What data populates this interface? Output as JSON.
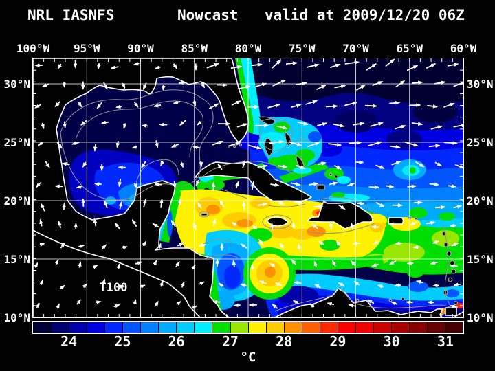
{
  "title": {
    "model": "NRL IASNFS",
    "run_type": "Nowcast",
    "valid": "valid at 2009/12/20 06Z"
  },
  "map": {
    "depth_label": "T100",
    "lon_labels": [
      "100°W",
      "95°W",
      "90°W",
      "85°W",
      "80°W",
      "75°W",
      "70°W",
      "65°W",
      "60°W"
    ],
    "lat_labels": [
      "30°N",
      "25°N",
      "20°N",
      "15°N",
      "10°N"
    ]
  },
  "colorbar": {
    "unit": "°C",
    "tick_labels": [
      "24",
      "25",
      "26",
      "27",
      "28",
      "29",
      "30",
      "31"
    ],
    "cell_colors": [
      "#000038",
      "#000070",
      "#0000a8",
      "#0000e0",
      "#0028ff",
      "#0055ff",
      "#0080ff",
      "#00aaff",
      "#00ccff",
      "#00eeff",
      "#00dd00",
      "#99e600",
      "#fff200",
      "#ffcc00",
      "#ff9100",
      "#ff6000",
      "#ff2a00",
      "#ff0000",
      "#ee0000",
      "#cc0000",
      "#a80000",
      "#880000",
      "#660000",
      "#440000"
    ]
  },
  "colors": {
    "background": "#000000",
    "text": "#ffffff",
    "grid": "#ffffff",
    "coastline": "#ffffff",
    "contour": "#909090",
    "land": "#000000",
    "arrow": "#ffffff"
  }
}
